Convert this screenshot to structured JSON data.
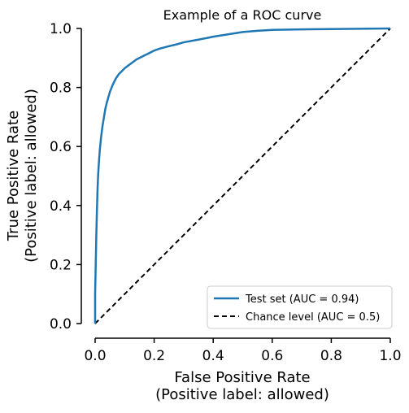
{
  "chart_data": {
    "type": "line",
    "title": "Example of a ROC curve",
    "xlabel_lines": [
      "False Positive Rate",
      "(Positive label: allowed)"
    ],
    "ylabel_lines": [
      "True Positive Rate",
      "(Positive label: allowed)"
    ],
    "xlim": [
      0,
      1
    ],
    "ylim": [
      0,
      1
    ],
    "xticks": [
      0.0,
      0.2,
      0.4,
      0.6,
      0.8,
      1.0
    ],
    "yticks": [
      0.0,
      0.2,
      0.4,
      0.6,
      0.8,
      1.0
    ],
    "xtick_labels": [
      "0.0",
      "0.2",
      "0.4",
      "0.6",
      "0.8",
      "1.0"
    ],
    "ytick_labels": [
      "0.0",
      "0.2",
      "0.4",
      "0.6",
      "0.8",
      "1.0"
    ],
    "grid": false,
    "legend_position": "lower-right",
    "series": [
      {
        "name": "Test set (AUC = 0.94)",
        "color": "#1f77b4",
        "style": "solid",
        "x": [
          0.0,
          0.0,
          0.002,
          0.004,
          0.006,
          0.008,
          0.01,
          0.013,
          0.016,
          0.02,
          0.025,
          0.03,
          0.035,
          0.04,
          0.05,
          0.06,
          0.07,
          0.08,
          0.09,
          0.1,
          0.12,
          0.14,
          0.16,
          0.18,
          0.2,
          0.22,
          0.25,
          0.28,
          0.3,
          0.35,
          0.4,
          0.45,
          0.5,
          0.55,
          0.6,
          0.7,
          0.8,
          0.9,
          1.0
        ],
        "y": [
          0.0,
          0.1,
          0.2,
          0.3,
          0.38,
          0.45,
          0.5,
          0.55,
          0.59,
          0.63,
          0.67,
          0.7,
          0.73,
          0.75,
          0.785,
          0.81,
          0.83,
          0.845,
          0.855,
          0.865,
          0.88,
          0.895,
          0.905,
          0.915,
          0.925,
          0.932,
          0.94,
          0.947,
          0.953,
          0.962,
          0.972,
          0.98,
          0.988,
          0.992,
          0.995,
          0.997,
          0.998,
          0.999,
          1.0
        ]
      },
      {
        "name": "Chance level (AUC = 0.5)",
        "color": "#000000",
        "style": "dashed",
        "x": [
          0,
          1
        ],
        "y": [
          0,
          1
        ]
      }
    ]
  }
}
